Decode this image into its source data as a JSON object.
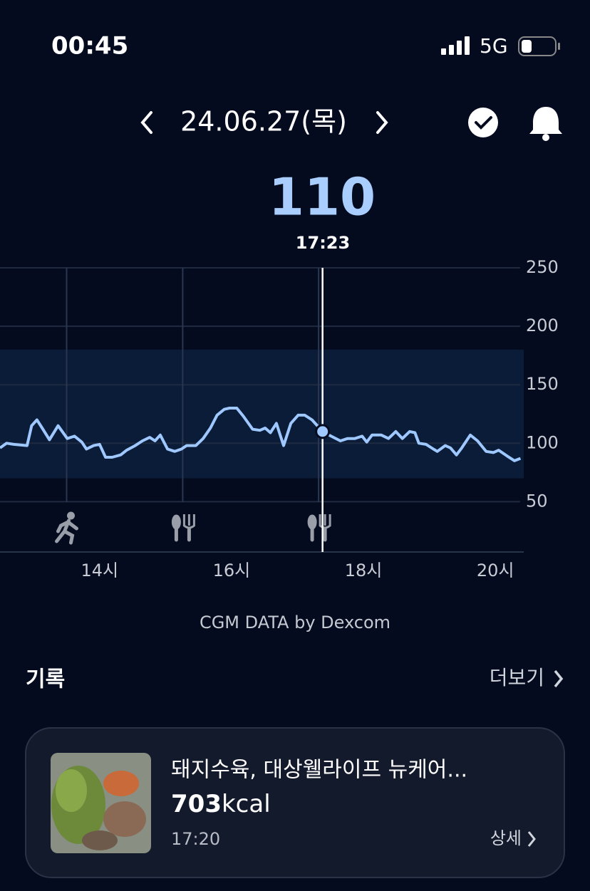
{
  "status_bar": {
    "time": "00:45",
    "network": "5G"
  },
  "header": {
    "date": "24.06.27(목)"
  },
  "current": {
    "value": "110",
    "time": "17:23"
  },
  "chart_data": {
    "type": "line",
    "x": [
      12.49,
      12.59,
      12.7,
      12.9,
      12.97,
      13.05,
      13.13,
      13.24,
      13.37,
      13.51,
      13.62,
      13.73,
      13.8,
      13.91,
      14.0,
      14.09,
      14.19,
      14.32,
      14.41,
      14.54,
      14.65,
      14.76,
      14.84,
      14.92,
      15.03,
      15.14,
      15.24,
      15.32,
      15.46,
      15.57,
      15.68,
      15.78,
      15.89,
      15.97,
      16.08,
      16.18,
      16.32,
      16.43,
      16.51,
      16.59,
      16.68,
      16.79,
      16.9,
      17.01,
      17.11,
      17.22,
      17.38,
      17.51,
      17.65,
      17.76,
      17.87,
      17.98,
      18.05,
      18.13,
      18.27,
      18.38,
      18.49,
      18.59,
      18.7,
      18.78,
      18.84,
      18.95,
      19.06,
      19.12,
      19.24,
      19.32,
      19.41,
      19.49,
      19.62,
      19.73,
      19.86,
      19.97,
      20.05,
      20.18,
      20.29,
      20.38
    ],
    "values": [
      96,
      100,
      99,
      98,
      115,
      120,
      113,
      103,
      115,
      104,
      106,
      101,
      95,
      98,
      99,
      88,
      88,
      90,
      94,
      98,
      102,
      105,
      102,
      107,
      95,
      93,
      95,
      98,
      98,
      104,
      113,
      124,
      129,
      130,
      130,
      123,
      112,
      111,
      113,
      109,
      117,
      98,
      117,
      124,
      124,
      120,
      110,
      106,
      102,
      104,
      104,
      106,
      101,
      107,
      107,
      104,
      110,
      104,
      110,
      109,
      100,
      99,
      95,
      93,
      98,
      96,
      90,
      96,
      107,
      102,
      93,
      92,
      94,
      89,
      85,
      87
    ],
    "color": "#9ec8ff",
    "xlim": [
      12.49,
      20.43
    ],
    "ylim": [
      7,
      250
    ],
    "xticks": [
      {
        "value": 14,
        "label": "14시"
      },
      {
        "value": 16,
        "label": "16시"
      },
      {
        "value": 18,
        "label": "18시"
      },
      {
        "value": 20,
        "label": "20시"
      }
    ],
    "yticks": [
      50,
      100,
      150,
      200,
      250
    ],
    "target_range": [
      70,
      180
    ],
    "cursor_index": 46,
    "events": [
      {
        "x": 13.5,
        "kind": "exercise"
      },
      {
        "x": 15.26,
        "kind": "meal"
      },
      {
        "x": 17.32,
        "kind": "meal"
      }
    ],
    "grid": true,
    "source": "CGM DATA by Dexcom"
  },
  "records": {
    "title": "기록",
    "more": "더보기",
    "items": [
      {
        "name": "돼지수육, 대상웰라이프 뉴케어...",
        "calories": "703",
        "unit": "kcal",
        "time": "17:20",
        "detail": "상세"
      }
    ]
  }
}
